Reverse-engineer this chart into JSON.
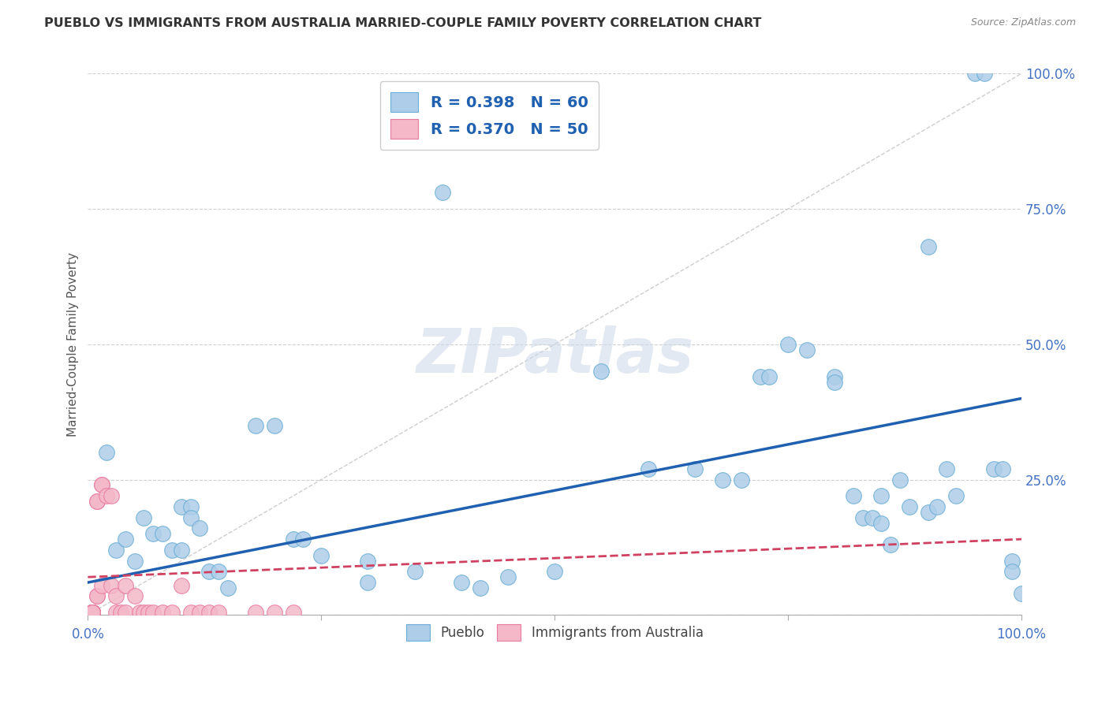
{
  "title": "PUEBLO VS IMMIGRANTS FROM AUSTRALIA MARRIED-COUPLE FAMILY POVERTY CORRELATION CHART",
  "source": "Source: ZipAtlas.com",
  "ylabel": "Married-Couple Family Poverty",
  "xlim": [
    0,
    1
  ],
  "ylim": [
    0,
    1
  ],
  "xtick_vals": [
    0.0,
    1.0
  ],
  "xtick_labels": [
    "0.0%",
    "100.0%"
  ],
  "ytick_vals": [
    0.25,
    0.5,
    0.75,
    1.0
  ],
  "ytick_labels": [
    "25.0%",
    "50.0%",
    "75.0%",
    "100.0%"
  ],
  "grid_ytick_vals": [
    0.0,
    0.25,
    0.5,
    0.75,
    1.0
  ],
  "pueblo_color": "#aecde8",
  "pueblo_edge_color": "#6aaed6",
  "australia_color": "#f4b8c8",
  "australia_edge_color": "#e87aa0",
  "pueblo_R": 0.398,
  "pueblo_N": 60,
  "australia_R": 0.37,
  "australia_N": 50,
  "pueblo_line_color": "#2060b0",
  "australia_line_color": "#d04060",
  "diagonal_color": "#c8c8c8",
  "watermark": "ZIPatlas",
  "legend_labels": [
    "Pueblo",
    "Immigrants from Australia"
  ],
  "pueblo_scatter": [
    [
      0.02,
      0.3
    ],
    [
      0.03,
      0.12
    ],
    [
      0.04,
      0.14
    ],
    [
      0.05,
      0.1
    ],
    [
      0.06,
      0.18
    ],
    [
      0.07,
      0.15
    ],
    [
      0.08,
      0.15
    ],
    [
      0.09,
      0.12
    ],
    [
      0.1,
      0.2
    ],
    [
      0.1,
      0.12
    ],
    [
      0.11,
      0.2
    ],
    [
      0.11,
      0.18
    ],
    [
      0.12,
      0.16
    ],
    [
      0.13,
      0.08
    ],
    [
      0.14,
      0.08
    ],
    [
      0.15,
      0.05
    ],
    [
      0.18,
      0.35
    ],
    [
      0.2,
      0.35
    ],
    [
      0.22,
      0.14
    ],
    [
      0.23,
      0.14
    ],
    [
      0.25,
      0.11
    ],
    [
      0.3,
      0.1
    ],
    [
      0.3,
      0.06
    ],
    [
      0.35,
      0.08
    ],
    [
      0.38,
      0.78
    ],
    [
      0.4,
      0.06
    ],
    [
      0.42,
      0.05
    ],
    [
      0.45,
      0.07
    ],
    [
      0.5,
      0.08
    ],
    [
      0.55,
      0.45
    ],
    [
      0.6,
      0.27
    ],
    [
      0.65,
      0.27
    ],
    [
      0.68,
      0.25
    ],
    [
      0.7,
      0.25
    ],
    [
      0.72,
      0.44
    ],
    [
      0.73,
      0.44
    ],
    [
      0.75,
      0.5
    ],
    [
      0.77,
      0.49
    ],
    [
      0.8,
      0.44
    ],
    [
      0.8,
      0.43
    ],
    [
      0.82,
      0.22
    ],
    [
      0.83,
      0.18
    ],
    [
      0.84,
      0.18
    ],
    [
      0.85,
      0.17
    ],
    [
      0.85,
      0.22
    ],
    [
      0.86,
      0.13
    ],
    [
      0.87,
      0.25
    ],
    [
      0.88,
      0.2
    ],
    [
      0.9,
      0.19
    ],
    [
      0.9,
      0.68
    ],
    [
      0.91,
      0.2
    ],
    [
      0.92,
      0.27
    ],
    [
      0.93,
      0.22
    ],
    [
      0.95,
      1.0
    ],
    [
      0.96,
      1.0
    ],
    [
      0.97,
      0.27
    ],
    [
      0.98,
      0.27
    ],
    [
      0.99,
      0.1
    ],
    [
      0.99,
      0.08
    ],
    [
      1.0,
      0.04
    ]
  ],
  "australia_scatter": [
    [
      0.005,
      0.005
    ],
    [
      0.005,
      0.005
    ],
    [
      0.005,
      0.005
    ],
    [
      0.005,
      0.005
    ],
    [
      0.005,
      0.005
    ],
    [
      0.005,
      0.005
    ],
    [
      0.005,
      0.005
    ],
    [
      0.005,
      0.005
    ],
    [
      0.005,
      0.005
    ],
    [
      0.005,
      0.005
    ],
    [
      0.005,
      0.005
    ],
    [
      0.005,
      0.005
    ],
    [
      0.005,
      0.005
    ],
    [
      0.005,
      0.005
    ],
    [
      0.005,
      0.005
    ],
    [
      0.005,
      0.005
    ],
    [
      0.005,
      0.005
    ],
    [
      0.005,
      0.005
    ],
    [
      0.005,
      0.005
    ],
    [
      0.005,
      0.005
    ],
    [
      0.01,
      0.21
    ],
    [
      0.01,
      0.21
    ],
    [
      0.01,
      0.035
    ],
    [
      0.01,
      0.035
    ],
    [
      0.015,
      0.24
    ],
    [
      0.015,
      0.24
    ],
    [
      0.015,
      0.055
    ],
    [
      0.02,
      0.22
    ],
    [
      0.025,
      0.055
    ],
    [
      0.025,
      0.22
    ],
    [
      0.03,
      0.035
    ],
    [
      0.03,
      0.005
    ],
    [
      0.035,
      0.005
    ],
    [
      0.04,
      0.005
    ],
    [
      0.04,
      0.055
    ],
    [
      0.05,
      0.035
    ],
    [
      0.055,
      0.005
    ],
    [
      0.06,
      0.005
    ],
    [
      0.065,
      0.005
    ],
    [
      0.07,
      0.005
    ],
    [
      0.08,
      0.005
    ],
    [
      0.09,
      0.005
    ],
    [
      0.1,
      0.055
    ],
    [
      0.11,
      0.005
    ],
    [
      0.12,
      0.005
    ],
    [
      0.13,
      0.005
    ],
    [
      0.14,
      0.005
    ],
    [
      0.18,
      0.005
    ],
    [
      0.2,
      0.005
    ],
    [
      0.22,
      0.005
    ]
  ]
}
